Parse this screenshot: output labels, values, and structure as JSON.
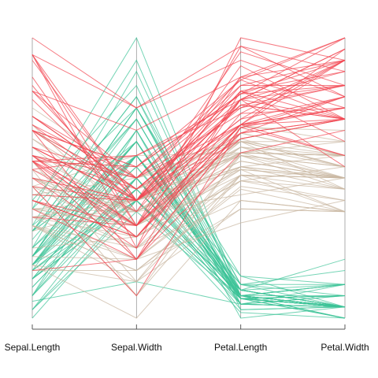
{
  "chart_data": {
    "type": "parallel_coordinates",
    "dimensions": [
      "Sepal.Length",
      "Sepal.Width",
      "Petal.Length",
      "Petal.Width"
    ],
    "scale": "each axis min-max normalized (0 = bottom, 1 = top)",
    "ylim": [
      0,
      1
    ],
    "grid": false,
    "legend": "none",
    "groups": [
      {
        "color": "#3cc397",
        "lines": [
          [
            0.22,
            0.63,
            0.07,
            0.04
          ],
          [
            0.17,
            0.42,
            0.07,
            0.04
          ],
          [
            0.11,
            0.5,
            0.05,
            0.04
          ],
          [
            0.08,
            0.46,
            0.08,
            0.04
          ],
          [
            0.19,
            0.67,
            0.07,
            0.04
          ],
          [
            0.31,
            0.79,
            0.12,
            0.12
          ],
          [
            0.08,
            0.58,
            0.07,
            0.08
          ],
          [
            0.19,
            0.58,
            0.08,
            0.04
          ],
          [
            0.03,
            0.38,
            0.07,
            0.04
          ],
          [
            0.17,
            0.46,
            0.08,
            0.0
          ],
          [
            0.31,
            0.71,
            0.08,
            0.04
          ],
          [
            0.14,
            0.58,
            0.1,
            0.04
          ],
          [
            0.14,
            0.42,
            0.07,
            0.0
          ],
          [
            0.0,
            0.42,
            0.02,
            0.0
          ],
          [
            0.42,
            0.83,
            0.03,
            0.04
          ],
          [
            0.39,
            1.0,
            0.08,
            0.12
          ],
          [
            0.31,
            0.79,
            0.05,
            0.12
          ],
          [
            0.22,
            0.63,
            0.07,
            0.08
          ],
          [
            0.39,
            0.75,
            0.12,
            0.08
          ],
          [
            0.22,
            0.75,
            0.08,
            0.08
          ],
          [
            0.31,
            0.58,
            0.12,
            0.04
          ],
          [
            0.22,
            0.71,
            0.08,
            0.12
          ],
          [
            0.08,
            0.67,
            0.0,
            0.04
          ],
          [
            0.22,
            0.54,
            0.12,
            0.17
          ],
          [
            0.14,
            0.58,
            0.15,
            0.04
          ],
          [
            0.19,
            0.42,
            0.1,
            0.04
          ],
          [
            0.19,
            0.58,
            0.1,
            0.12
          ],
          [
            0.25,
            0.63,
            0.08,
            0.04
          ],
          [
            0.25,
            0.58,
            0.07,
            0.04
          ],
          [
            0.11,
            0.5,
            0.1,
            0.04
          ],
          [
            0.14,
            0.46,
            0.1,
            0.04
          ],
          [
            0.31,
            0.58,
            0.08,
            0.12
          ],
          [
            0.25,
            0.88,
            0.08,
            0.0
          ],
          [
            0.33,
            0.92,
            0.07,
            0.04
          ],
          [
            0.17,
            0.46,
            0.08,
            0.04
          ],
          [
            0.19,
            0.5,
            0.03,
            0.04
          ],
          [
            0.33,
            0.63,
            0.05,
            0.04
          ],
          [
            0.17,
            0.67,
            0.07,
            0.0
          ],
          [
            0.03,
            0.42,
            0.05,
            0.04
          ],
          [
            0.22,
            0.58,
            0.08,
            0.04
          ],
          [
            0.19,
            0.63,
            0.05,
            0.08
          ],
          [
            0.06,
            0.13,
            0.05,
            0.08
          ],
          [
            0.03,
            0.5,
            0.05,
            0.04
          ],
          [
            0.19,
            0.63,
            0.1,
            0.21
          ],
          [
            0.22,
            0.75,
            0.15,
            0.12
          ],
          [
            0.14,
            0.42,
            0.07,
            0.08
          ],
          [
            0.22,
            0.75,
            0.1,
            0.04
          ],
          [
            0.08,
            0.5,
            0.07,
            0.04
          ],
          [
            0.28,
            0.71,
            0.08,
            0.04
          ],
          [
            0.19,
            0.54,
            0.07,
            0.04
          ]
        ]
      },
      {
        "color": "#c9b6a1",
        "lines": [
          [
            0.75,
            0.5,
            0.63,
            0.54
          ],
          [
            0.58,
            0.5,
            0.59,
            0.58
          ],
          [
            0.72,
            0.46,
            0.66,
            0.58
          ],
          [
            0.33,
            0.13,
            0.51,
            0.5
          ],
          [
            0.61,
            0.33,
            0.61,
            0.58
          ],
          [
            0.39,
            0.33,
            0.59,
            0.5
          ],
          [
            0.56,
            0.54,
            0.63,
            0.63
          ],
          [
            0.17,
            0.17,
            0.39,
            0.38
          ],
          [
            0.64,
            0.38,
            0.61,
            0.5
          ],
          [
            0.25,
            0.29,
            0.49,
            0.54
          ],
          [
            0.19,
            0.0,
            0.42,
            0.38
          ],
          [
            0.44,
            0.42,
            0.54,
            0.58
          ],
          [
            0.47,
            0.08,
            0.51,
            0.38
          ],
          [
            0.5,
            0.38,
            0.63,
            0.54
          ],
          [
            0.36,
            0.38,
            0.44,
            0.5
          ],
          [
            0.67,
            0.46,
            0.58,
            0.54
          ],
          [
            0.36,
            0.42,
            0.59,
            0.58
          ],
          [
            0.42,
            0.29,
            0.53,
            0.38
          ],
          [
            0.53,
            0.08,
            0.59,
            0.58
          ],
          [
            0.36,
            0.21,
            0.49,
            0.42
          ],
          [
            0.44,
            0.5,
            0.64,
            0.71
          ],
          [
            0.5,
            0.33,
            0.51,
            0.5
          ],
          [
            0.56,
            0.21,
            0.66,
            0.58
          ],
          [
            0.5,
            0.33,
            0.63,
            0.46
          ],
          [
            0.58,
            0.38,
            0.56,
            0.5
          ],
          [
            0.64,
            0.42,
            0.58,
            0.54
          ],
          [
            0.69,
            0.33,
            0.64,
            0.54
          ],
          [
            0.67,
            0.42,
            0.68,
            0.67
          ],
          [
            0.47,
            0.38,
            0.59,
            0.58
          ],
          [
            0.39,
            0.25,
            0.42,
            0.38
          ],
          [
            0.33,
            0.17,
            0.47,
            0.42
          ],
          [
            0.33,
            0.17,
            0.46,
            0.38
          ],
          [
            0.42,
            0.29,
            0.49,
            0.46
          ],
          [
            0.47,
            0.29,
            0.69,
            0.63
          ],
          [
            0.31,
            0.42,
            0.59,
            0.58
          ],
          [
            0.47,
            0.58,
            0.59,
            0.63
          ],
          [
            0.67,
            0.46,
            0.63,
            0.58
          ],
          [
            0.56,
            0.13,
            0.58,
            0.5
          ],
          [
            0.36,
            0.42,
            0.53,
            0.5
          ],
          [
            0.33,
            0.21,
            0.51,
            0.5
          ],
          [
            0.33,
            0.25,
            0.58,
            0.46
          ],
          [
            0.5,
            0.42,
            0.61,
            0.54
          ],
          [
            0.42,
            0.25,
            0.51,
            0.46
          ],
          [
            0.19,
            0.13,
            0.39,
            0.38
          ],
          [
            0.36,
            0.29,
            0.54,
            0.5
          ],
          [
            0.39,
            0.42,
            0.54,
            0.46
          ],
          [
            0.39,
            0.38,
            0.54,
            0.5
          ],
          [
            0.53,
            0.38,
            0.56,
            0.5
          ],
          [
            0.22,
            0.21,
            0.34,
            0.42
          ],
          [
            0.39,
            0.33,
            0.53,
            0.5
          ]
        ]
      },
      {
        "color": "#f2434f",
        "lines": [
          [
            0.56,
            0.54,
            0.85,
            1.0
          ],
          [
            0.42,
            0.29,
            0.69,
            0.75
          ],
          [
            0.78,
            0.42,
            0.83,
            0.83
          ],
          [
            0.56,
            0.38,
            0.78,
            0.71
          ],
          [
            0.61,
            0.42,
            0.81,
            0.88
          ],
          [
            0.92,
            0.42,
            0.95,
            0.83
          ],
          [
            0.17,
            0.21,
            0.59,
            0.67
          ],
          [
            0.83,
            0.38,
            0.9,
            0.71
          ],
          [
            0.67,
            0.21,
            0.81,
            0.71
          ],
          [
            0.81,
            0.67,
            0.86,
            1.0
          ],
          [
            0.61,
            0.5,
            0.69,
            0.79
          ],
          [
            0.58,
            0.29,
            0.73,
            0.75
          ],
          [
            0.69,
            0.42,
            0.76,
            0.83
          ],
          [
            0.39,
            0.21,
            0.68,
            0.79
          ],
          [
            0.42,
            0.33,
            0.69,
            0.96
          ],
          [
            0.58,
            0.5,
            0.73,
            0.92
          ],
          [
            0.61,
            0.42,
            0.76,
            0.71
          ],
          [
            0.94,
            0.75,
            0.97,
            0.88
          ],
          [
            0.94,
            0.25,
            1.0,
            0.92
          ],
          [
            0.47,
            0.08,
            0.68,
            0.58
          ],
          [
            0.72,
            0.5,
            0.8,
            0.92
          ],
          [
            0.36,
            0.33,
            0.66,
            0.79
          ],
          [
            0.94,
            0.33,
            0.97,
            0.79
          ],
          [
            0.56,
            0.29,
            0.66,
            0.71
          ],
          [
            0.67,
            0.54,
            0.8,
            0.83
          ],
          [
            0.81,
            0.5,
            0.85,
            0.71
          ],
          [
            0.53,
            0.33,
            0.64,
            0.71
          ],
          [
            0.5,
            0.42,
            0.66,
            0.71
          ],
          [
            0.58,
            0.33,
            0.78,
            0.83
          ],
          [
            0.81,
            0.42,
            0.81,
            0.63
          ],
          [
            0.86,
            0.33,
            0.86,
            0.75
          ],
          [
            1.0,
            0.75,
            0.92,
            0.79
          ],
          [
            0.58,
            0.33,
            0.78,
            0.88
          ],
          [
            0.56,
            0.33,
            0.69,
            0.58
          ],
          [
            0.5,
            0.25,
            0.78,
            0.54
          ],
          [
            0.94,
            0.42,
            0.86,
            0.92
          ],
          [
            0.56,
            0.58,
            0.78,
            0.96
          ],
          [
            0.58,
            0.46,
            0.76,
            0.71
          ],
          [
            0.47,
            0.42,
            0.64,
            0.71
          ],
          [
            0.72,
            0.46,
            0.75,
            0.83
          ],
          [
            0.67,
            0.46,
            0.78,
            0.96
          ],
          [
            0.72,
            0.46,
            0.69,
            0.92
          ],
          [
            0.42,
            0.29,
            0.69,
            0.75
          ],
          [
            0.69,
            0.5,
            0.83,
            0.92
          ],
          [
            0.67,
            0.54,
            0.8,
            1.0
          ],
          [
            0.67,
            0.42,
            0.71,
            0.92
          ],
          [
            0.56,
            0.21,
            0.68,
            0.75
          ],
          [
            0.61,
            0.42,
            0.71,
            0.79
          ],
          [
            0.53,
            0.58,
            0.75,
            0.92
          ],
          [
            0.44,
            0.42,
            0.69,
            0.71
          ]
        ]
      }
    ]
  }
}
